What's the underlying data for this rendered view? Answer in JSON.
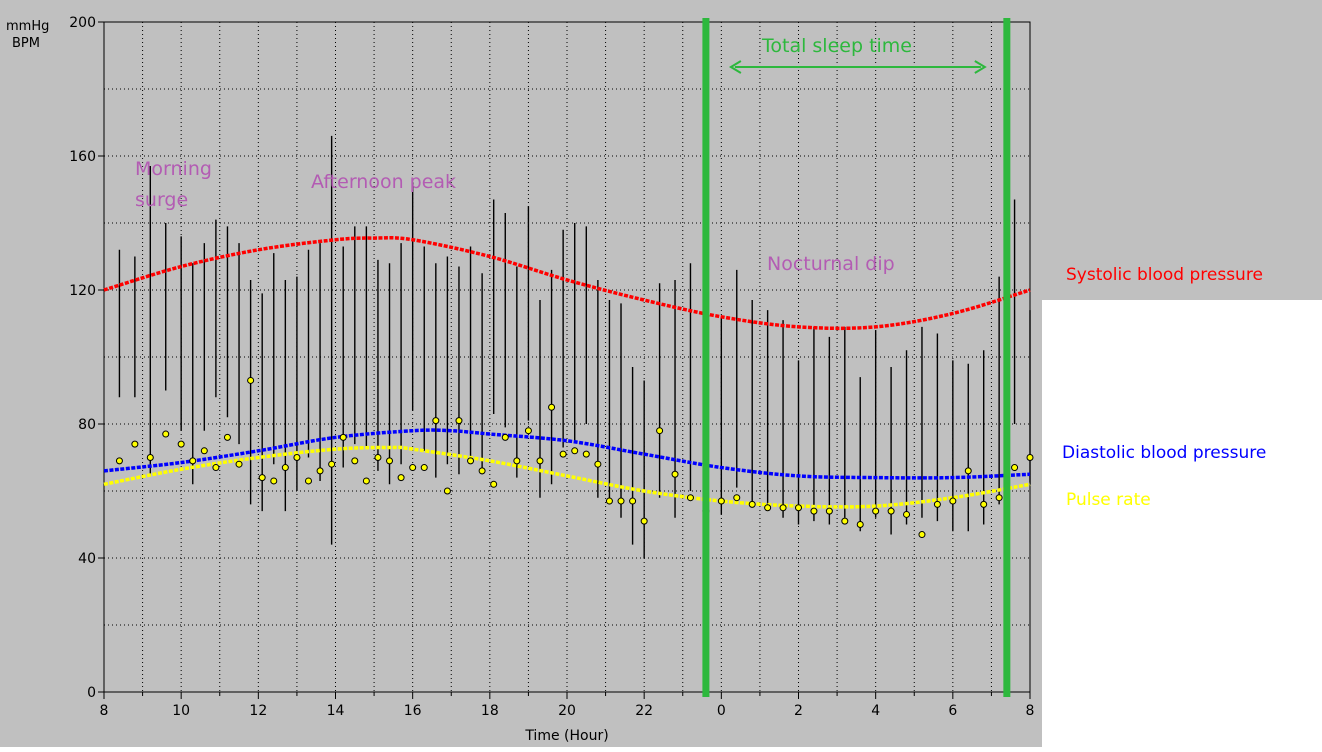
{
  "chart_data": {
    "type": "line",
    "title": "",
    "ylabel_lines": [
      "mmHg",
      "BPM"
    ],
    "xlabel": "Time (Hour)",
    "ylim": [
      0,
      200
    ],
    "y_ticks": [
      0,
      40,
      80,
      120,
      160,
      200
    ],
    "x_ticks": [
      "8",
      "10",
      "12",
      "14",
      "16",
      "18",
      "20",
      "22",
      "0",
      "2",
      "4",
      "6",
      "8"
    ],
    "x_range_hours": [
      8,
      32
    ],
    "grid": true,
    "colors": {
      "systolic": "#ff0000",
      "diastolic": "#0000ff",
      "pulse": "#ffff00",
      "sleep_marker": "#2db83d",
      "annotation": "#b35cb3",
      "plot_background": "#c0c0c0"
    },
    "series": [
      {
        "name": "Systolic blood pressure",
        "x": [
          8,
          10,
          12,
          14,
          15,
          16,
          18,
          20,
          22,
          24,
          26,
          28,
          30,
          32
        ],
        "values": [
          120,
          127,
          132,
          135,
          135.5,
          135,
          130,
          123,
          117,
          112,
          109,
          109,
          113,
          120
        ]
      },
      {
        "name": "Diastolic blood pressure",
        "x": [
          8,
          10,
          12,
          14,
          16,
          17,
          18,
          20,
          22,
          24,
          26,
          28,
          30,
          32
        ],
        "values": [
          66,
          68.5,
          72,
          76,
          78,
          78,
          77,
          75,
          71,
          67,
          64.5,
          64,
          64,
          65
        ]
      },
      {
        "name": "Pulse rate",
        "x": [
          8,
          10,
          12,
          14,
          15.5,
          16,
          18,
          20,
          22,
          24,
          26,
          28,
          30,
          32
        ],
        "values": [
          62,
          66.5,
          70,
          72.5,
          73,
          72.5,
          69,
          64.5,
          60,
          57,
          55.5,
          55.5,
          58,
          62
        ]
      }
    ],
    "measurement_bars": {
      "x": [
        8.4,
        8.8,
        9.2,
        9.6,
        10.0,
        10.3,
        10.6,
        10.9,
        11.2,
        11.5,
        11.8,
        12.1,
        12.4,
        12.7,
        13.0,
        13.3,
        13.6,
        13.9,
        14.2,
        14.5,
        14.8,
        15.1,
        15.4,
        15.7,
        16.0,
        16.3,
        16.6,
        16.9,
        17.2,
        17.5,
        17.8,
        18.1,
        18.4,
        18.7,
        19.0,
        19.3,
        19.6,
        19.9,
        20.2,
        20.5,
        20.8,
        21.1,
        21.4,
        21.7,
        22.0,
        22.4,
        22.8,
        23.2,
        23.6,
        24.0,
        24.4,
        24.8,
        25.2,
        25.6,
        26.0,
        26.4,
        26.8,
        27.2,
        27.6,
        28.0,
        28.4,
        28.8,
        29.2,
        29.6,
        30.0,
        30.4,
        30.8,
        31.2,
        31.6,
        32.0
      ],
      "high": [
        132,
        130,
        157,
        140,
        136,
        128,
        134,
        141,
        139,
        134,
        123,
        119,
        131,
        123,
        124,
        132,
        134,
        166,
        133,
        139,
        139,
        129,
        128,
        134,
        152,
        133,
        128,
        130,
        127,
        133,
        125,
        147,
        143,
        127,
        145,
        117,
        126,
        138,
        140,
        139,
        123,
        117,
        116,
        97,
        93,
        122,
        123,
        128,
        120,
        112,
        126,
        117,
        114,
        111,
        99,
        109,
        106,
        109,
        94,
        108,
        97,
        102,
        109,
        107,
        99,
        98,
        102,
        124,
        147,
        114
      ],
      "low": [
        88,
        88,
        65,
        90,
        78,
        62,
        78,
        88,
        82,
        74,
        56,
        54,
        68,
        54,
        60,
        70,
        63,
        44,
        67,
        74,
        73,
        66,
        62,
        68,
        84,
        72,
        64,
        68,
        65,
        70,
        65,
        83,
        79,
        64,
        81,
        58,
        62,
        73,
        75,
        80,
        58,
        56,
        52,
        44,
        40,
        58,
        52,
        60,
        57,
        53,
        61,
        56,
        55,
        52,
        50,
        51,
        50,
        52,
        48,
        52,
        47,
        50,
        52,
        51,
        48,
        48,
        50,
        56,
        80,
        62
      ]
    },
    "pulse_dots": {
      "x": [
        8.4,
        8.8,
        9.2,
        9.6,
        10.0,
        10.3,
        10.6,
        10.9,
        11.2,
        11.5,
        11.8,
        12.1,
        12.4,
        12.7,
        13.0,
        13.3,
        13.6,
        13.9,
        14.2,
        14.5,
        14.8,
        15.1,
        15.4,
        15.7,
        16.0,
        16.3,
        16.6,
        16.9,
        17.2,
        17.5,
        17.8,
        18.1,
        18.4,
        18.7,
        19.0,
        19.3,
        19.6,
        19.9,
        20.2,
        20.5,
        20.8,
        21.1,
        21.4,
        21.7,
        22.0,
        22.4,
        22.8,
        23.2,
        23.6,
        24.0,
        24.4,
        24.8,
        25.2,
        25.6,
        26.0,
        26.4,
        26.8,
        27.2,
        27.6,
        28.0,
        28.4,
        28.8,
        29.2,
        29.6,
        30.0,
        30.4,
        30.8,
        31.2,
        31.6,
        32.0
      ],
      "values": [
        69,
        74,
        70,
        77,
        74,
        69,
        72,
        67,
        76,
        68,
        93,
        64,
        63,
        67,
        70,
        63,
        66,
        68,
        76,
        69,
        63,
        70,
        69,
        64,
        67,
        67,
        81,
        60,
        81,
        69,
        66,
        62,
        76,
        69,
        78,
        69,
        85,
        71,
        72,
        71,
        68,
        57,
        57,
        57,
        51,
        78,
        65,
        58,
        54,
        57,
        58,
        56,
        55,
        55,
        55,
        54,
        54,
        51,
        50,
        54,
        54,
        53,
        47,
        56,
        57,
        66,
        56,
        58,
        67,
        70
      ]
    },
    "annotations": [
      {
        "text_lines": [
          "Morning",
          "surge"
        ],
        "x": 9.2,
        "y": 160
      },
      {
        "text_lines": [
          "Afternoon peak"
        ],
        "x": 13.5,
        "y": 153
      },
      {
        "text_lines": [
          "Nocturnal dip"
        ],
        "x": 27.2,
        "y": 126
      }
    ],
    "sleep_markers": [
      23.6,
      31.4
    ],
    "sleep_label": "Total sleep time",
    "legend_placement": "right"
  }
}
